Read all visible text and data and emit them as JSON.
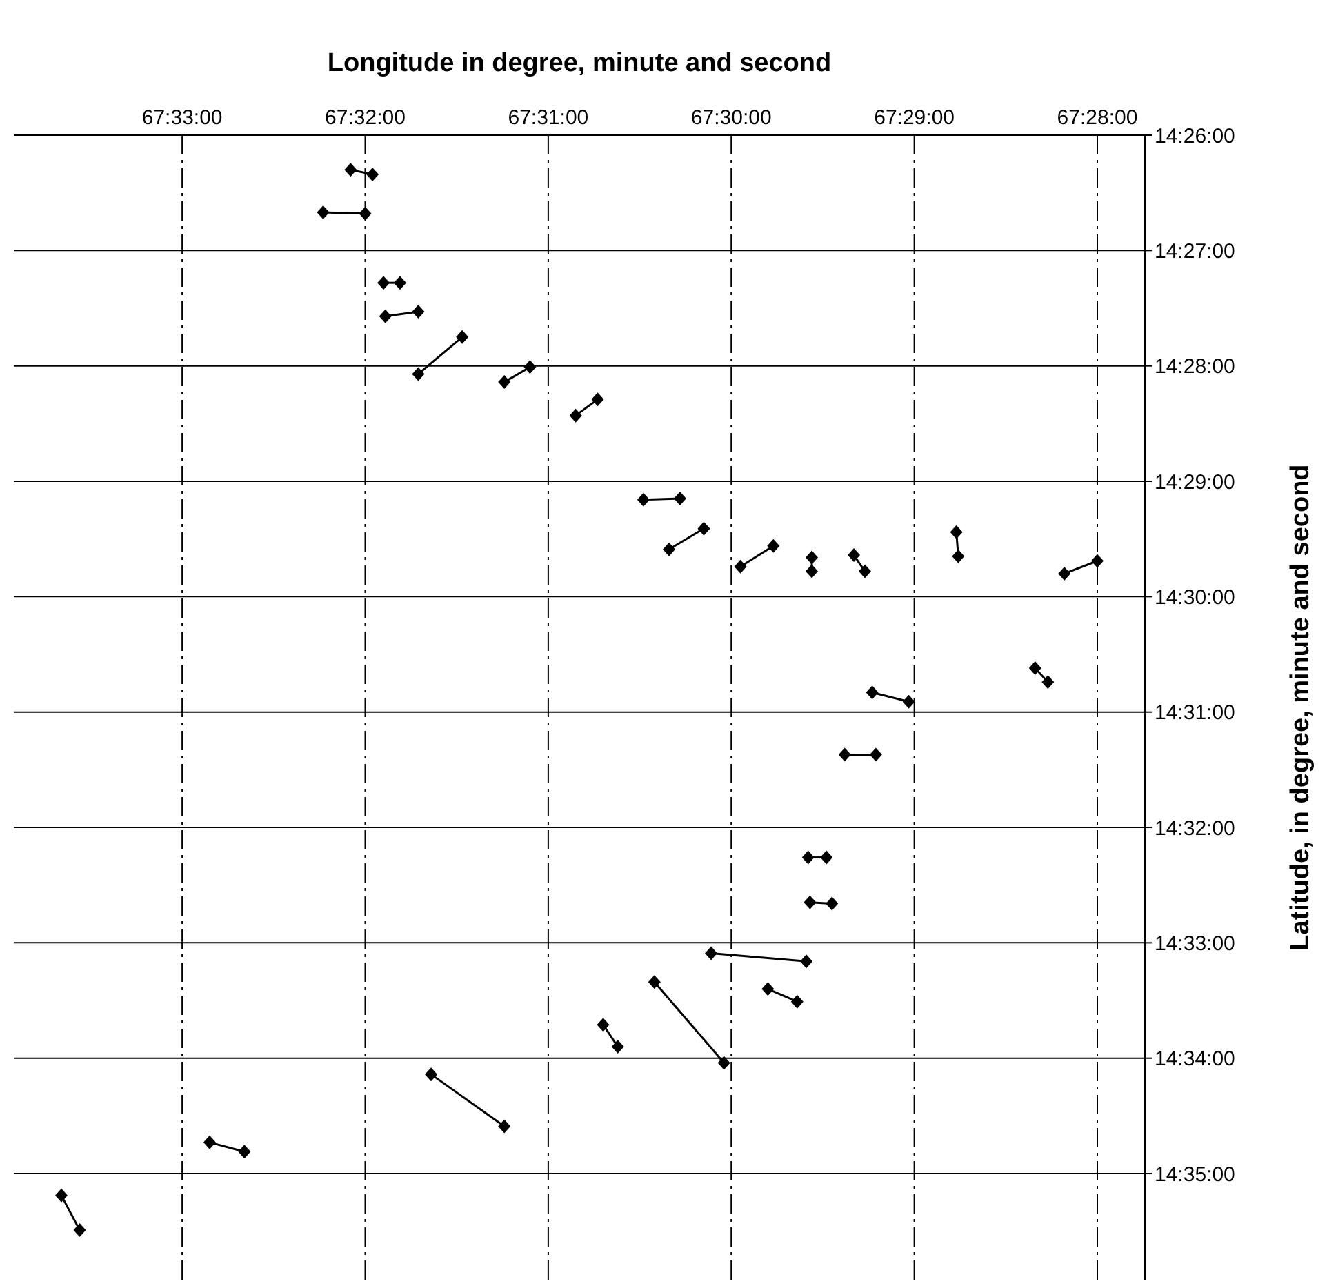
{
  "chart_data": {
    "type": "line",
    "xlabel": "Longitude in degree, minute and second",
    "ylabel": "Latitude, in degree, minute and second",
    "xlim": [
      4053.92,
      4047.74
    ],
    "ylim": [
      875.92,
      866
    ],
    "xticks": [
      {
        "value": 4053,
        "label": "67:33:00"
      },
      {
        "value": 4052,
        "label": "67:32:00"
      },
      {
        "value": 4051,
        "label": "67:31:00"
      },
      {
        "value": 4050,
        "label": "67:30:00"
      },
      {
        "value": 4049,
        "label": "67:29:00"
      },
      {
        "value": 4048,
        "label": "67:28:00"
      }
    ],
    "yticks": [
      {
        "value": 866,
        "label": "14:26:00"
      },
      {
        "value": 867,
        "label": "14:27:00"
      },
      {
        "value": 868,
        "label": "14:28:00"
      },
      {
        "value": 869,
        "label": "14:29:00"
      },
      {
        "value": 870,
        "label": "14:30:00"
      },
      {
        "value": 871,
        "label": "14:31:00"
      },
      {
        "value": 872,
        "label": "14:32:00"
      },
      {
        "value": 873,
        "label": "14:33:00"
      },
      {
        "value": 874,
        "label": "14:34:00"
      },
      {
        "value": 875,
        "label": "14:35:00"
      }
    ],
    "grid": true,
    "marker": "diamond",
    "line_style": "solid",
    "series": [
      {
        "color": "#000000",
        "x": [
          4052.08,
          4051.96
        ],
        "values": [
          866.3,
          866.34
        ]
      },
      {
        "color": "#000000",
        "x": [
          4052.23,
          4052.0
        ],
        "values": [
          866.67,
          866.68
        ]
      },
      {
        "color": "#000000",
        "x": [
          4051.9,
          4051.81
        ],
        "values": [
          867.28,
          867.28
        ]
      },
      {
        "color": "#000000",
        "x": [
          4051.89,
          4051.71
        ],
        "values": [
          867.57,
          867.53
        ]
      },
      {
        "color": "#000000",
        "x": [
          4051.71,
          4051.47
        ],
        "values": [
          868.07,
          867.75
        ]
      },
      {
        "color": "#000000",
        "x": [
          4051.24,
          4051.1
        ],
        "values": [
          868.14,
          868.01
        ]
      },
      {
        "color": "#000000",
        "x": [
          4050.85,
          4050.73
        ],
        "values": [
          868.43,
          868.29
        ]
      },
      {
        "color": "#000000",
        "x": [
          4050.48,
          4050.28
        ],
        "values": [
          869.16,
          869.15
        ]
      },
      {
        "color": "#000000",
        "x": [
          4050.34,
          4050.15
        ],
        "values": [
          869.59,
          869.41
        ]
      },
      {
        "color": "#000000",
        "x": [
          4049.95,
          4049.77
        ],
        "values": [
          869.74,
          869.56
        ]
      },
      {
        "color": "#000000",
        "x": [
          4049.56,
          4049.56
        ],
        "values": [
          869.66,
          869.78
        ]
      },
      {
        "color": "#000000",
        "x": [
          4049.33,
          4049.27
        ],
        "values": [
          869.64,
          869.78
        ]
      },
      {
        "color": "#000000",
        "x": [
          4048.77,
          4048.76
        ],
        "values": [
          869.44,
          869.65
        ]
      },
      {
        "color": "#000000",
        "x": [
          4048.18,
          4048.0
        ],
        "values": [
          869.8,
          869.69
        ]
      },
      {
        "color": "#000000",
        "x": [
          4048.34,
          4048.27
        ],
        "values": [
          870.62,
          870.74
        ]
      },
      {
        "color": "#000000",
        "x": [
          4049.23,
          4049.03
        ],
        "values": [
          870.83,
          870.91
        ]
      },
      {
        "color": "#000000",
        "x": [
          4049.38,
          4049.21
        ],
        "values": [
          871.37,
          871.37
        ]
      },
      {
        "color": "#000000",
        "x": [
          4049.58,
          4049.48
        ],
        "values": [
          872.26,
          872.26
        ]
      },
      {
        "color": "#000000",
        "x": [
          4049.57,
          4049.45
        ],
        "values": [
          872.65,
          872.66
        ]
      },
      {
        "color": "#000000",
        "x": [
          4050.11,
          4049.59
        ],
        "values": [
          873.09,
          873.16
        ]
      },
      {
        "color": "#000000",
        "x": [
          4049.8,
          4049.64
        ],
        "values": [
          873.4,
          873.51
        ]
      },
      {
        "color": "#000000",
        "x": [
          4050.42,
          4050.04
        ],
        "values": [
          873.34,
          874.04
        ]
      },
      {
        "color": "#000000",
        "x": [
          4050.7,
          4050.62
        ],
        "values": [
          873.71,
          873.9
        ]
      },
      {
        "color": "#000000",
        "x": [
          4051.64,
          4051.24
        ],
        "values": [
          874.14,
          874.59
        ]
      },
      {
        "color": "#000000",
        "x": [
          4052.85,
          4052.66
        ],
        "values": [
          874.73,
          874.81
        ]
      },
      {
        "color": "#000000",
        "x": [
          4053.66,
          4053.56
        ],
        "values": [
          875.19,
          875.49
        ]
      }
    ]
  }
}
